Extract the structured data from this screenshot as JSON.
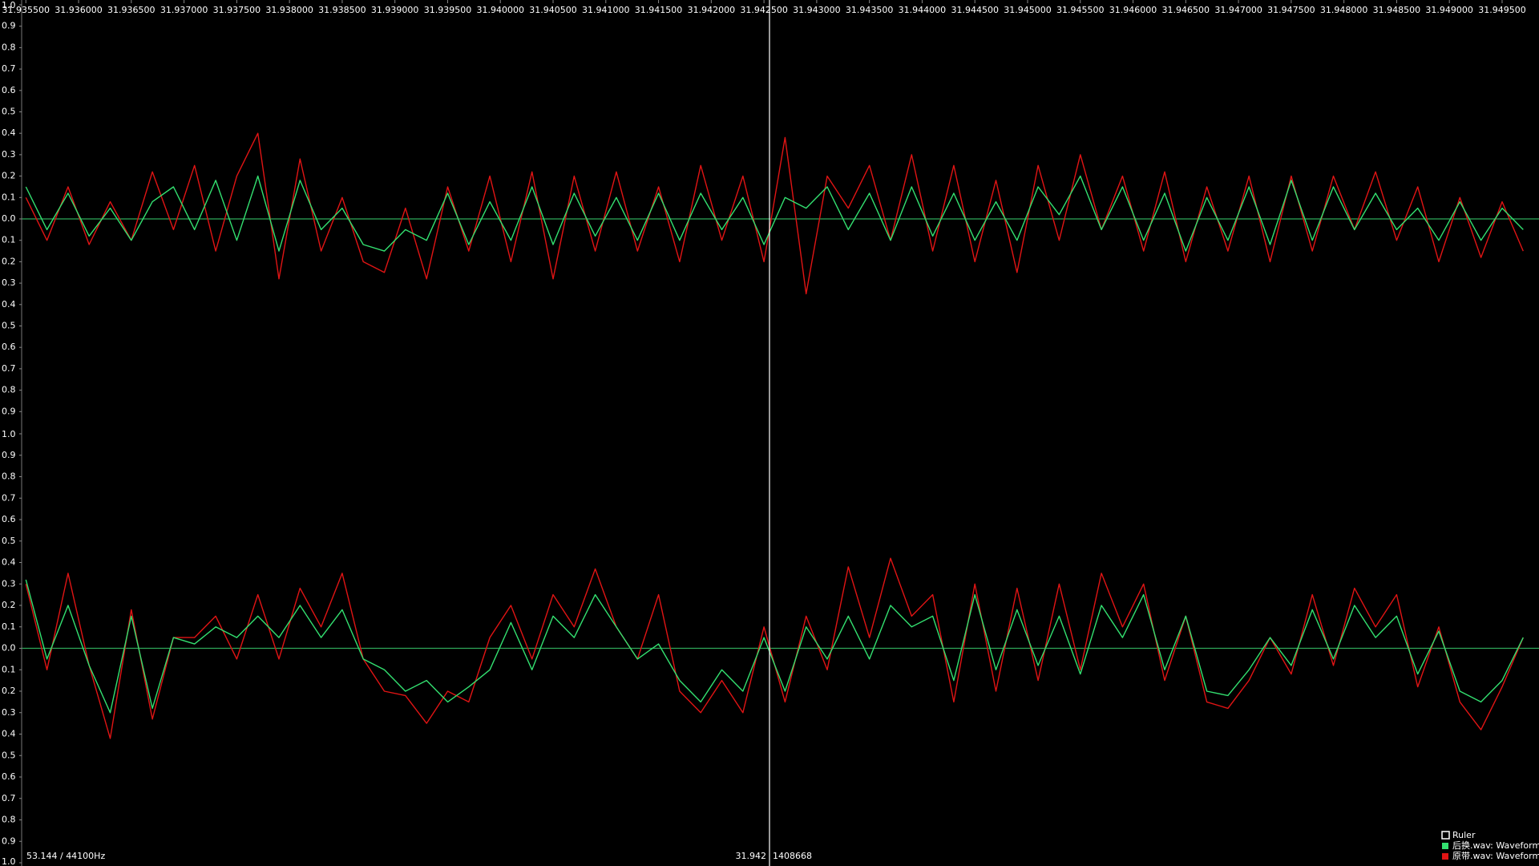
{
  "chart_data": [
    {
      "type": "line",
      "x": [
        31.9355,
        31.9357,
        31.9359,
        31.9361,
        31.9363,
        31.9365,
        31.9367,
        31.9369,
        31.9371,
        31.9373,
        31.9375,
        31.9377,
        31.9379,
        31.9381,
        31.9383,
        31.9385,
        31.9387,
        31.9389,
        31.9391,
        31.9393,
        31.9395,
        31.9397,
        31.9399,
        31.9401,
        31.9403,
        31.9405,
        31.9407,
        31.9409,
        31.9411,
        31.9413,
        31.9415,
        31.9417,
        31.9419,
        31.9421,
        31.9423,
        31.9425,
        31.9427,
        31.9429,
        31.9431,
        31.9433,
        31.9435,
        31.9437,
        31.9439,
        31.9441,
        31.9443,
        31.9445,
        31.9447,
        31.9449,
        31.9451,
        31.9453,
        31.9455,
        31.9457,
        31.9459,
        31.9461,
        31.9463,
        31.9465,
        31.9467,
        31.9469,
        31.9471,
        31.9473,
        31.9475,
        31.9477,
        31.9479,
        31.9481,
        31.9483,
        31.9485,
        31.9487,
        31.9489,
        31.9491,
        31.9493,
        31.9495,
        31.9497
      ],
      "xlim": [
        31.93546,
        31.94985
      ],
      "xticks": [
        {
          "value": 31.9355,
          "label": "31.935500"
        },
        {
          "value": 31.936,
          "label": "31.936000"
        },
        {
          "value": 31.9365,
          "label": "31.936500"
        },
        {
          "value": 31.937,
          "label": "31.937000"
        },
        {
          "value": 31.9375,
          "label": "31.937500"
        },
        {
          "value": 31.938,
          "label": "31.938000"
        },
        {
          "value": 31.9385,
          "label": "31.938500"
        },
        {
          "value": 31.939,
          "label": "31.939000"
        },
        {
          "value": 31.9395,
          "label": "31.939500"
        },
        {
          "value": 31.94,
          "label": "31.940000"
        },
        {
          "value": 31.9405,
          "label": "31.940500"
        },
        {
          "value": 31.941,
          "label": "31.941000"
        },
        {
          "value": 31.9415,
          "label": "31.941500"
        },
        {
          "value": 31.942,
          "label": "31.942000"
        },
        {
          "value": 31.9425,
          "label": "31.942500"
        },
        {
          "value": 31.943,
          "label": "31.943000"
        },
        {
          "value": 31.9435,
          "label": "31.943500"
        },
        {
          "value": 31.944,
          "label": "31.944000"
        },
        {
          "value": 31.9445,
          "label": "31.944500"
        },
        {
          "value": 31.945,
          "label": "31.945000"
        },
        {
          "value": 31.9455,
          "label": "31.945500"
        },
        {
          "value": 31.946,
          "label": "31.946000"
        },
        {
          "value": 31.9465,
          "label": "31.946500"
        },
        {
          "value": 31.947,
          "label": "31.947000"
        },
        {
          "value": 31.9475,
          "label": "31.947500"
        },
        {
          "value": 31.948,
          "label": "31.948000"
        },
        {
          "value": 31.9485,
          "label": "31.948500"
        },
        {
          "value": 31.949,
          "label": "31.949000"
        },
        {
          "value": 31.9495,
          "label": "31.949500"
        }
      ],
      "ylim": [
        -1,
        1
      ],
      "yticks": [
        {
          "value": 1,
          "label": "1.0"
        },
        0.9,
        0.8,
        0.7,
        0.6,
        0.5,
        0.4,
        0.3,
        0.2,
        0.1,
        {
          "value": 0,
          "label": "0.0"
        },
        {
          "value": -0.1,
          "label": "0.1"
        },
        {
          "value": -0.2,
          "label": "0.2"
        },
        {
          "value": -0.3,
          "label": "0.3"
        },
        {
          "value": -0.4,
          "label": "0.4"
        },
        {
          "value": -0.5,
          "label": "0.5"
        },
        {
          "value": -0.6,
          "label": "0.6"
        },
        {
          "value": -0.7,
          "label": "0.7"
        },
        {
          "value": -0.8,
          "label": "0.8"
        },
        {
          "value": -0.9,
          "label": "0.9"
        }
      ],
      "series": [
        {
          "name": "原带.wav: Waveform",
          "color": "#e01414",
          "values": [
            0.1,
            -0.1,
            0.15,
            -0.12,
            0.08,
            -0.1,
            0.22,
            -0.05,
            0.25,
            -0.15,
            0.2,
            0.4,
            -0.28,
            0.28,
            -0.15,
            0.1,
            -0.2,
            -0.25,
            0.05,
            -0.28,
            0.15,
            -0.15,
            0.2,
            -0.2,
            0.22,
            -0.28,
            0.2,
            -0.15,
            0.22,
            -0.15,
            0.15,
            -0.2,
            0.25,
            -0.1,
            0.2,
            -0.2,
            0.38,
            -0.35,
            0.2,
            0.05,
            0.25,
            -0.1,
            0.3,
            -0.15,
            0.25,
            -0.2,
            0.18,
            -0.25,
            0.25,
            -0.1,
            0.3,
            -0.05,
            0.2,
            -0.15,
            0.22,
            -0.2,
            0.15,
            -0.15,
            0.2,
            -0.2,
            0.2,
            -0.15,
            0.2,
            -0.05,
            0.22,
            -0.1,
            0.15,
            -0.2,
            0.1,
            -0.18,
            0.08,
            -0.15
          ]
        },
        {
          "name": "后换.wav: Waveform",
          "color": "#33e070",
          "values": [
            0.15,
            -0.05,
            0.12,
            -0.08,
            0.05,
            -0.1,
            0.08,
            0.15,
            -0.05,
            0.18,
            -0.1,
            0.2,
            -0.15,
            0.18,
            -0.05,
            0.05,
            -0.12,
            -0.15,
            -0.05,
            -0.1,
            0.12,
            -0.12,
            0.08,
            -0.1,
            0.15,
            -0.12,
            0.12,
            -0.08,
            0.1,
            -0.1,
            0.12,
            -0.1,
            0.12,
            -0.05,
            0.1,
            -0.12,
            0.1,
            0.05,
            0.15,
            -0.05,
            0.12,
            -0.1,
            0.15,
            -0.08,
            0.12,
            -0.1,
            0.08,
            -0.1,
            0.15,
            0.02,
            0.2,
            -0.05,
            0.15,
            -0.1,
            0.12,
            -0.15,
            0.1,
            -0.1,
            0.15,
            -0.12,
            0.18,
            -0.1,
            0.15,
            -0.05,
            0.12,
            -0.05,
            0.05,
            -0.1,
            0.08,
            -0.1,
            0.05,
            -0.05
          ]
        }
      ]
    },
    {
      "type": "line",
      "x": [
        31.9355,
        31.9357,
        31.9359,
        31.9361,
        31.9363,
        31.9365,
        31.9367,
        31.9369,
        31.9371,
        31.9373,
        31.9375,
        31.9377,
        31.9379,
        31.9381,
        31.9383,
        31.9385,
        31.9387,
        31.9389,
        31.9391,
        31.9393,
        31.9395,
        31.9397,
        31.9399,
        31.9401,
        31.9403,
        31.9405,
        31.9407,
        31.9409,
        31.9411,
        31.9413,
        31.9415,
        31.9417,
        31.9419,
        31.9421,
        31.9423,
        31.9425,
        31.9427,
        31.9429,
        31.9431,
        31.9433,
        31.9435,
        31.9437,
        31.9439,
        31.9441,
        31.9443,
        31.9445,
        31.9447,
        31.9449,
        31.9451,
        31.9453,
        31.9455,
        31.9457,
        31.9459,
        31.9461,
        31.9463,
        31.9465,
        31.9467,
        31.9469,
        31.9471,
        31.9473,
        31.9475,
        31.9477,
        31.9479,
        31.9481,
        31.9483,
        31.9485,
        31.9487,
        31.9489,
        31.9491,
        31.9493,
        31.9495,
        31.9497
      ],
      "xlim": [
        31.93546,
        31.94985
      ],
      "ylim": [
        -1,
        1
      ],
      "yticks": [
        {
          "value": 1,
          "label": "1.0"
        },
        0.9,
        0.8,
        0.7,
        0.6,
        0.5,
        0.4,
        0.3,
        0.2,
        0.1,
        {
          "value": 0,
          "label": "0.0"
        },
        {
          "value": -0.1,
          "label": "0.1"
        },
        {
          "value": -0.2,
          "label": "0.2"
        },
        {
          "value": -0.3,
          "label": "0.3"
        },
        {
          "value": -0.4,
          "label": "0.4"
        },
        {
          "value": -0.5,
          "label": "0.5"
        },
        {
          "value": -0.6,
          "label": "0.6"
        },
        {
          "value": -0.7,
          "label": "0.7"
        },
        {
          "value": -0.8,
          "label": "0.8"
        },
        {
          "value": -0.9,
          "label": "0.9"
        },
        {
          "value": -1,
          "label": "1.0"
        }
      ],
      "series": [
        {
          "name": "原带.wav: Waveform",
          "color": "#e01414",
          "values": [
            0.3,
            -0.1,
            0.35,
            -0.08,
            -0.42,
            0.18,
            -0.33,
            0.05,
            0.05,
            0.15,
            -0.05,
            0.25,
            -0.05,
            0.28,
            0.1,
            0.35,
            -0.05,
            -0.2,
            -0.22,
            -0.35,
            -0.2,
            -0.25,
            0.05,
            0.2,
            -0.05,
            0.25,
            0.1,
            0.37,
            0.1,
            -0.05,
            0.25,
            -0.2,
            -0.3,
            -0.15,
            -0.3,
            0.1,
            -0.25,
            0.15,
            -0.1,
            0.38,
            0.05,
            0.42,
            0.15,
            0.25,
            -0.25,
            0.3,
            -0.2,
            0.28,
            -0.15,
            0.3,
            -0.1,
            0.35,
            0.1,
            0.3,
            -0.15,
            0.15,
            -0.25,
            -0.28,
            -0.15,
            0.05,
            -0.12,
            0.25,
            -0.08,
            0.28,
            0.1,
            0.25,
            -0.18,
            0.1,
            -0.25,
            -0.38,
            -0.18,
            0.05
          ]
        },
        {
          "name": "后换.wav: Waveform",
          "color": "#33e070",
          "values": [
            0.32,
            -0.05,
            0.2,
            -0.08,
            -0.3,
            0.15,
            -0.28,
            0.05,
            0.02,
            0.1,
            0.05,
            0.15,
            0.05,
            0.2,
            0.05,
            0.18,
            -0.05,
            -0.1,
            -0.2,
            -0.15,
            -0.25,
            -0.18,
            -0.1,
            0.12,
            -0.1,
            0.15,
            0.05,
            0.25,
            0.1,
            -0.05,
            0.02,
            -0.15,
            -0.25,
            -0.1,
            -0.2,
            0.05,
            -0.2,
            0.1,
            -0.05,
            0.15,
            -0.05,
            0.2,
            0.1,
            0.15,
            -0.15,
            0.25,
            -0.1,
            0.18,
            -0.08,
            0.15,
            -0.12,
            0.2,
            0.05,
            0.25,
            -0.1,
            0.15,
            -0.2,
            -0.22,
            -0.1,
            0.05,
            -0.08,
            0.18,
            -0.05,
            0.2,
            0.05,
            0.15,
            -0.12,
            0.08,
            -0.2,
            -0.25,
            -0.15,
            0.05
          ]
        }
      ]
    }
  ],
  "ruler_label": "Ruler",
  "status": {
    "left": "53.144 / 44100Hz",
    "center": "31.942",
    "right": "1408668"
  }
}
